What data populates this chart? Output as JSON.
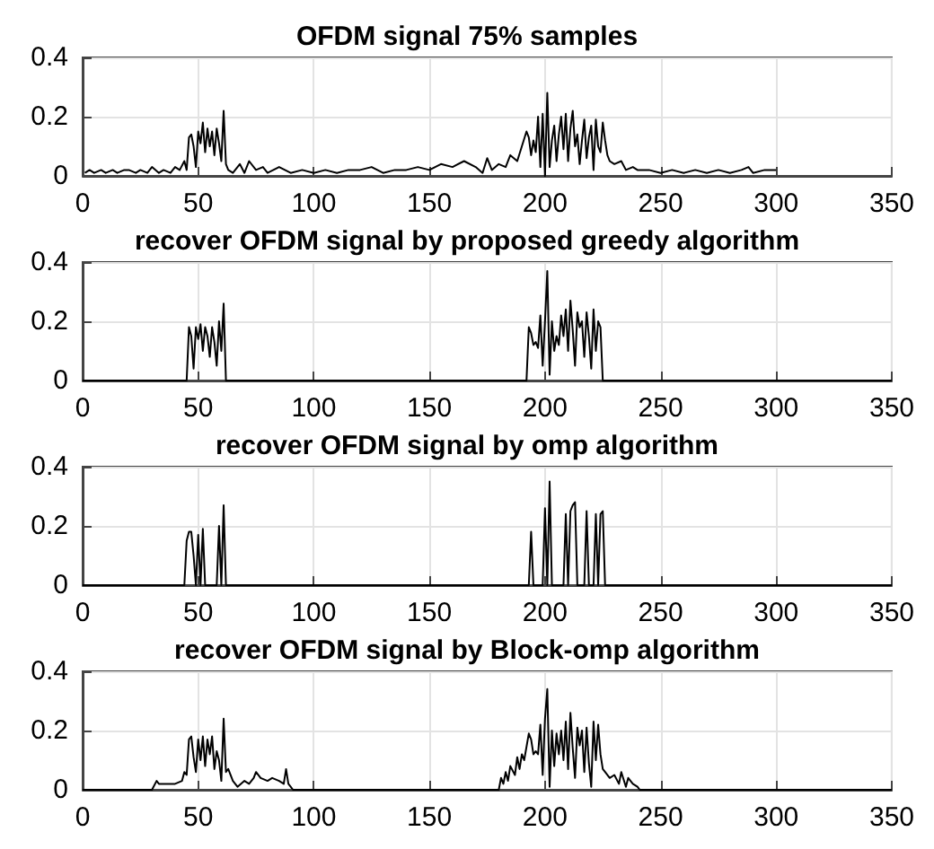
{
  "chart_data": [
    {
      "type": "line",
      "title": "OFDM signal 75% samples",
      "xlim": [
        0,
        350
      ],
      "xticks": [
        0,
        50,
        100,
        150,
        200,
        250,
        300,
        350
      ],
      "ylim": [
        0,
        0.4
      ],
      "yticks": [
        0,
        0.2,
        0.4
      ],
      "grid": true,
      "marker": "none",
      "series": [
        {
          "color": "#000000",
          "x": [
            1,
            3,
            5,
            8,
            10,
            13,
            15,
            18,
            20,
            23,
            25,
            28,
            30,
            33,
            35,
            38,
            40,
            42,
            44,
            45,
            46,
            47,
            48,
            49,
            50,
            51,
            52,
            53,
            54,
            55,
            56,
            57,
            58,
            59,
            60,
            61,
            62,
            63,
            65,
            68,
            70,
            72,
            75,
            78,
            80,
            85,
            90,
            95,
            100,
            105,
            110,
            115,
            120,
            125,
            130,
            135,
            140,
            145,
            150,
            155,
            160,
            165,
            170,
            173,
            175,
            177,
            180,
            183,
            185,
            188,
            190,
            192,
            193,
            194,
            195,
            196,
            197,
            198,
            199,
            200,
            201,
            202,
            203,
            204,
            205,
            206,
            207,
            208,
            209,
            210,
            211,
            212,
            213,
            214,
            215,
            216,
            217,
            218,
            219,
            220,
            221,
            222,
            223,
            224,
            225,
            226,
            227,
            228,
            230,
            233,
            235,
            238,
            240,
            245,
            250,
            255,
            260,
            265,
            270,
            275,
            280,
            285,
            288,
            290,
            295,
            300
          ],
          "values": [
            0.01,
            0.02,
            0.01,
            0.02,
            0.01,
            0.02,
            0.01,
            0.02,
            0.02,
            0.01,
            0.02,
            0.01,
            0.03,
            0.01,
            0.02,
            0.01,
            0.03,
            0.02,
            0.05,
            0.02,
            0.13,
            0.14,
            0.1,
            0.03,
            0.15,
            0.11,
            0.18,
            0.08,
            0.16,
            0.1,
            0.15,
            0.07,
            0.16,
            0.11,
            0.05,
            0.22,
            0.04,
            0.02,
            0.01,
            0.04,
            0.01,
            0.05,
            0.02,
            0.03,
            0.01,
            0.03,
            0.01,
            0.02,
            0.01,
            0.02,
            0.01,
            0.02,
            0.02,
            0.03,
            0.01,
            0.02,
            0.02,
            0.03,
            0.02,
            0.04,
            0.03,
            0.05,
            0.03,
            0.01,
            0.06,
            0.02,
            0.04,
            0.03,
            0.07,
            0.05,
            0.1,
            0.15,
            0.13,
            0.07,
            0.12,
            0.08,
            0.2,
            0.03,
            0.21,
            0.0,
            0.28,
            0.03,
            0.12,
            0.17,
            0.05,
            0.14,
            0.2,
            0.09,
            0.21,
            0.05,
            0.16,
            0.22,
            0.1,
            0.14,
            0.04,
            0.12,
            0.19,
            0.06,
            0.13,
            0.17,
            0.02,
            0.19,
            0.1,
            0.08,
            0.18,
            0.12,
            0.07,
            0.05,
            0.04,
            0.05,
            0.02,
            0.03,
            0.02,
            0.02,
            0.01,
            0.02,
            0.01,
            0.02,
            0.01,
            0.02,
            0.01,
            0.02,
            0.03,
            0.01,
            0.02,
            0.02
          ]
        }
      ]
    },
    {
      "type": "line",
      "title": "recover OFDM signal by proposed greedy algorithm",
      "xlim": [
        0,
        350
      ],
      "xticks": [
        0,
        50,
        100,
        150,
        200,
        250,
        300,
        350
      ],
      "ylim": [
        0,
        0.4
      ],
      "yticks": [
        0,
        0.2,
        0.4
      ],
      "grid": true,
      "marker": "none",
      "series": [
        {
          "color": "#000000",
          "x": [
            0,
            45,
            46,
            47,
            48,
            49,
            50,
            51,
            52,
            53,
            54,
            55,
            56,
            57,
            58,
            59,
            60,
            61,
            62,
            192,
            193,
            194,
            195,
            196,
            197,
            198,
            199,
            200,
            201,
            202,
            203,
            204,
            205,
            206,
            207,
            208,
            209,
            210,
            211,
            212,
            213,
            214,
            215,
            216,
            217,
            218,
            219,
            220,
            221,
            222,
            223,
            224,
            225,
            350
          ],
          "values": [
            0,
            0,
            0.18,
            0.15,
            0.04,
            0.18,
            0.14,
            0.19,
            0.1,
            0.18,
            0.15,
            0.08,
            0.18,
            0.13,
            0.05,
            0.2,
            0.1,
            0.26,
            0,
            0,
            0.18,
            0.16,
            0.12,
            0.13,
            0.11,
            0.22,
            0.05,
            0.2,
            0.37,
            0.02,
            0.2,
            0.1,
            0.15,
            0.12,
            0.22,
            0.15,
            0.24,
            0.1,
            0.27,
            0.17,
            0.05,
            0.23,
            0.18,
            0.2,
            0.08,
            0.23,
            0.15,
            0.04,
            0.24,
            0.1,
            0.2,
            0.18,
            0,
            0
          ]
        }
      ]
    },
    {
      "type": "line",
      "title": "recover OFDM signal by omp algorithm",
      "xlim": [
        0,
        350
      ],
      "xticks": [
        0,
        50,
        100,
        150,
        200,
        250,
        300,
        350
      ],
      "ylim": [
        0,
        0.4
      ],
      "yticks": [
        0,
        0.2,
        0.4
      ],
      "grid": true,
      "marker": "none",
      "series": [
        {
          "color": "#000000",
          "x": [
            0,
            44,
            45,
            46,
            47,
            48,
            49,
            50,
            51,
            52,
            53,
            58,
            59,
            60,
            61,
            62,
            193,
            194,
            195,
            199,
            200,
            201,
            202,
            203,
            208,
            209,
            210,
            211,
            212,
            213,
            214,
            217,
            218,
            219,
            221,
            222,
            223,
            224,
            225,
            226,
            350
          ],
          "values": [
            0,
            0,
            0.15,
            0.18,
            0.18,
            0.1,
            0,
            0.17,
            0,
            0.19,
            0,
            0,
            0.2,
            0,
            0.27,
            0,
            0,
            0.18,
            0,
            0,
            0.26,
            0,
            0.35,
            0,
            0,
            0.24,
            0,
            0.25,
            0.27,
            0.28,
            0,
            0,
            0.25,
            0,
            0,
            0.24,
            0,
            0.24,
            0.25,
            0,
            0
          ]
        }
      ]
    },
    {
      "type": "line",
      "title": "recover OFDM signal by Block-omp algorithm",
      "xlim": [
        0,
        350
      ],
      "xticks": [
        0,
        50,
        100,
        150,
        200,
        250,
        300,
        350
      ],
      "ylim": [
        0,
        0.4
      ],
      "yticks": [
        0,
        0.2,
        0.4
      ],
      "grid": true,
      "marker": "none",
      "series": [
        {
          "color": "#000000",
          "x": [
            0,
            30,
            32,
            33,
            40,
            43,
            44,
            45,
            46,
            47,
            48,
            49,
            50,
            51,
            52,
            53,
            54,
            55,
            56,
            57,
            58,
            59,
            60,
            61,
            62,
            63,
            65,
            67,
            70,
            72,
            74,
            75,
            77,
            80,
            82,
            85,
            87,
            88,
            89,
            90,
            91,
            180,
            181,
            182,
            183,
            184,
            185,
            187,
            188,
            189,
            190,
            191,
            193,
            194,
            195,
            196,
            197,
            198,
            199,
            200,
            201,
            202,
            203,
            204,
            205,
            206,
            207,
            208,
            209,
            210,
            211,
            212,
            213,
            214,
            215,
            216,
            217,
            218,
            219,
            220,
            221,
            222,
            223,
            224,
            225,
            226,
            228,
            230,
            232,
            233,
            235,
            236,
            238,
            240,
            241,
            350
          ],
          "values": [
            0,
            0,
            0.03,
            0.02,
            0.02,
            0.03,
            0.06,
            0.05,
            0.17,
            0.18,
            0.11,
            0.06,
            0.17,
            0.1,
            0.18,
            0.08,
            0.17,
            0.12,
            0.18,
            0.07,
            0.13,
            0.1,
            0.03,
            0.24,
            0.06,
            0.07,
            0.03,
            0.01,
            0.03,
            0.02,
            0.04,
            0.06,
            0.04,
            0.03,
            0.04,
            0.03,
            0.02,
            0.07,
            0.02,
            0.01,
            0,
            0,
            0.04,
            0.02,
            0.06,
            0.03,
            0.08,
            0.05,
            0.11,
            0.07,
            0.12,
            0.1,
            0.19,
            0.17,
            0.12,
            0.13,
            0.12,
            0.22,
            0.05,
            0.24,
            0.34,
            0.01,
            0.2,
            0.08,
            0.19,
            0.12,
            0.2,
            0.1,
            0.23,
            0.07,
            0.26,
            0.14,
            0.04,
            0.21,
            0.15,
            0.2,
            0.06,
            0.21,
            0.09,
            0.01,
            0.23,
            0.1,
            0.22,
            0.12,
            0.07,
            0.06,
            0.04,
            0.05,
            0.02,
            0.06,
            0.01,
            0.04,
            0.02,
            0.01,
            0,
            0
          ]
        }
      ]
    }
  ]
}
